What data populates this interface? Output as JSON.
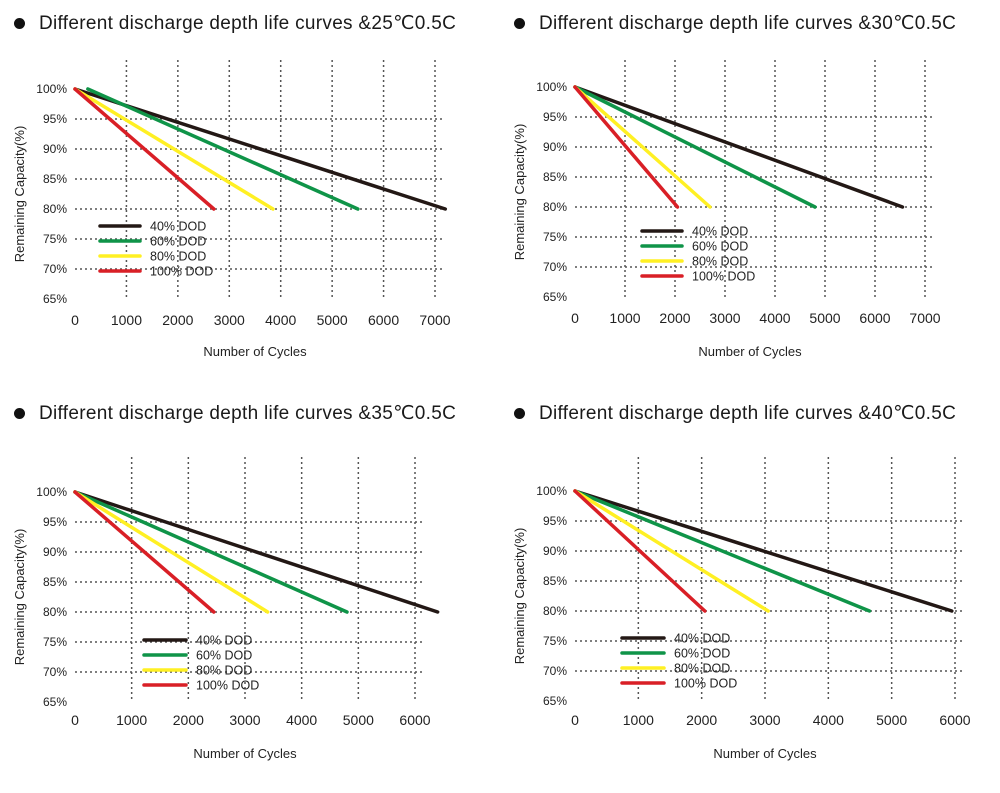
{
  "chart_data": [
    {
      "type": "line",
      "title": "Different discharge depth life curves &25℃0.5C",
      "xlabel": "Number of Cycles",
      "ylabel": "Remaining Capacity(%)",
      "xlim": [
        0,
        7000
      ],
      "ylim": [
        65,
        100
      ],
      "xticks": [
        "0",
        "1000",
        "2000",
        "3000",
        "4000",
        "5000",
        "6000",
        "7000"
      ],
      "xtick_values": [
        0,
        1000,
        2000,
        3000,
        4000,
        5000,
        6000,
        7000
      ],
      "yticks": [
        "100%",
        "95%",
        "90%",
        "85%",
        "80%",
        "75%",
        "70%",
        "65%"
      ],
      "ytick_values": [
        100,
        95,
        90,
        85,
        80,
        75,
        70,
        65
      ],
      "grid": true,
      "legend": "lower-left",
      "series": [
        {
          "name": "40% DOD",
          "color": "#231815",
          "x": [
            0,
            7200
          ],
          "y": [
            100,
            80
          ]
        },
        {
          "name": "60% DOD",
          "color": "#0f9448",
          "x": [
            250,
            5500
          ],
          "y": [
            100,
            80
          ]
        },
        {
          "name": "80% DOD",
          "color": "#fff023",
          "x": [
            0,
            3850
          ],
          "y": [
            100,
            80
          ]
        },
        {
          "name": "100% DOD",
          "color": "#d91f26",
          "x": [
            0,
            2700
          ],
          "y": [
            100,
            80
          ]
        }
      ]
    },
    {
      "type": "line",
      "title": "Different discharge depth life curves &30℃0.5C",
      "xlabel": "Number of Cycles",
      "ylabel": "Remaining Capacity(%)",
      "xlim": [
        0,
        7000
      ],
      "ylim": [
        65,
        100
      ],
      "xticks": [
        "0",
        "1000",
        "2000",
        "3000",
        "4000",
        "5000",
        "6000",
        "7000"
      ],
      "xtick_values": [
        0,
        1000,
        2000,
        3000,
        4000,
        5000,
        6000,
        7000
      ],
      "yticks": [
        "100%",
        "95%",
        "90%",
        "85%",
        "80%",
        "75%",
        "70%",
        "65%"
      ],
      "ytick_values": [
        100,
        95,
        90,
        85,
        80,
        75,
        70,
        65
      ],
      "grid": true,
      "legend": "lower-center",
      "series": [
        {
          "name": "40% DOD",
          "color": "#231815",
          "x": [
            0,
            6550
          ],
          "y": [
            100,
            80
          ]
        },
        {
          "name": "60% DOD",
          "color": "#0f9448",
          "x": [
            0,
            4800
          ],
          "y": [
            100,
            80
          ]
        },
        {
          "name": "80% DOD",
          "color": "#fff023",
          "x": [
            0,
            2700
          ],
          "y": [
            100,
            80
          ]
        },
        {
          "name": "100% DOD",
          "color": "#d91f26",
          "x": [
            0,
            2050
          ],
          "y": [
            100,
            80
          ]
        }
      ]
    },
    {
      "type": "line",
      "title": "Different discharge depth life curves &35℃0.5C",
      "xlabel": "Number of Cycles",
      "ylabel": "Remaining Capacity(%)",
      "xlim": [
        0,
        6000
      ],
      "ylim": [
        65,
        100
      ],
      "xticks": [
        "0",
        "1000",
        "2000",
        "3000",
        "4000",
        "5000",
        "6000"
      ],
      "xtick_values": [
        0,
        1000,
        2000,
        3000,
        4000,
        5000,
        6000
      ],
      "yticks": [
        "100%",
        "95%",
        "90%",
        "85%",
        "80%",
        "75%",
        "70%",
        "65%"
      ],
      "ytick_values": [
        100,
        95,
        90,
        85,
        80,
        75,
        70,
        65
      ],
      "grid": true,
      "legend": "lower-center",
      "series": [
        {
          "name": "40% DOD",
          "color": "#231815",
          "x": [
            0,
            6400
          ],
          "y": [
            100,
            80
          ]
        },
        {
          "name": "60% DOD",
          "color": "#0f9448",
          "x": [
            0,
            4800
          ],
          "y": [
            100,
            80
          ]
        },
        {
          "name": "80% DOD",
          "color": "#fff023",
          "x": [
            0,
            3400
          ],
          "y": [
            100,
            80
          ]
        },
        {
          "name": "100% DOD",
          "color": "#d91f26",
          "x": [
            0,
            2450
          ],
          "y": [
            100,
            80
          ]
        }
      ]
    },
    {
      "type": "line",
      "title": "Different discharge depth life curves &40℃0.5C",
      "xlabel": "Number of Cycles",
      "ylabel": "Remaining Capacity(%)",
      "xlim": [
        0,
        6000
      ],
      "ylim": [
        65,
        100
      ],
      "xticks": [
        "0",
        "1000",
        "2000",
        "3000",
        "4000",
        "5000",
        "6000"
      ],
      "xtick_values": [
        0,
        1000,
        2000,
        3000,
        4000,
        5000,
        6000
      ],
      "yticks": [
        "100%",
        "95%",
        "90%",
        "85%",
        "80%",
        "75%",
        "70%",
        "65%"
      ],
      "ytick_values": [
        100,
        95,
        90,
        85,
        80,
        75,
        70,
        65
      ],
      "grid": true,
      "legend": "lower-center",
      "series": [
        {
          "name": "40% DOD",
          "color": "#231815",
          "x": [
            0,
            5950
          ],
          "y": [
            100,
            80
          ]
        },
        {
          "name": "60% DOD",
          "color": "#0f9448",
          "x": [
            0,
            4650
          ],
          "y": [
            100,
            80
          ]
        },
        {
          "name": "80% DOD",
          "color": "#fff023",
          "x": [
            0,
            3050
          ],
          "y": [
            100,
            80
          ]
        },
        {
          "name": "100% DOD",
          "color": "#d91f26",
          "x": [
            0,
            2050
          ],
          "y": [
            100,
            80
          ]
        }
      ]
    }
  ]
}
